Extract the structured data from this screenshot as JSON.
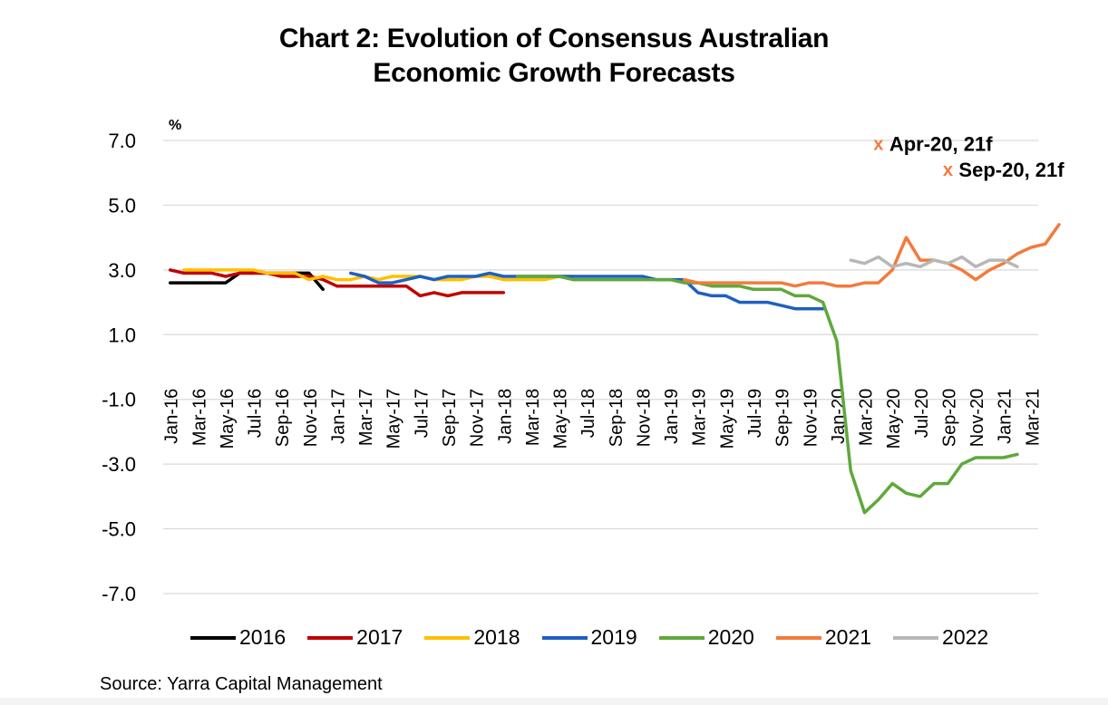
{
  "chart_data": {
    "type": "line",
    "title_line1": "Chart 2: Evolution of Consensus Australian",
    "title_line2": "Economic Growth Forecasts",
    "ylabel": "%",
    "ylim": [
      -7.0,
      7.0
    ],
    "yticks": [
      7.0,
      5.0,
      3.0,
      1.0,
      -1.0,
      -3.0,
      -5.0,
      -7.0
    ],
    "ytick_labels": [
      "7.0",
      "5.0",
      "3.0",
      "1.0",
      "-1.0",
      "-3.0",
      "-5.0",
      "-7.0"
    ],
    "x_months": [
      "Jan-16",
      "Feb-16",
      "Mar-16",
      "Apr-16",
      "May-16",
      "Jun-16",
      "Jul-16",
      "Aug-16",
      "Sep-16",
      "Oct-16",
      "Nov-16",
      "Dec-16",
      "Jan-17",
      "Feb-17",
      "Mar-17",
      "Apr-17",
      "May-17",
      "Jun-17",
      "Jul-17",
      "Aug-17",
      "Sep-17",
      "Oct-17",
      "Nov-17",
      "Dec-17",
      "Jan-18",
      "Feb-18",
      "Mar-18",
      "Apr-18",
      "May-18",
      "Jun-18",
      "Jul-18",
      "Aug-18",
      "Sep-18",
      "Oct-18",
      "Nov-18",
      "Dec-18",
      "Jan-19",
      "Feb-19",
      "Mar-19",
      "Apr-19",
      "May-19",
      "Jun-19",
      "Jul-19",
      "Aug-19",
      "Sep-19",
      "Oct-19",
      "Nov-19",
      "Dec-19",
      "Jan-20",
      "Feb-20",
      "Mar-20",
      "Apr-20",
      "May-20",
      "Jun-20",
      "Jul-20",
      "Aug-20",
      "Sep-20",
      "Oct-20",
      "Nov-20",
      "Dec-20",
      "Jan-21",
      "Feb-21",
      "Mar-21"
    ],
    "xtick_labels": [
      "Jan-16",
      "Mar-16",
      "May-16",
      "Jul-16",
      "Sep-16",
      "Nov-16",
      "Jan-17",
      "Mar-17",
      "May-17",
      "Jul-17",
      "Sep-17",
      "Nov-17",
      "Jan-18",
      "Mar-18",
      "May-18",
      "Jul-18",
      "Sep-18",
      "Nov-18",
      "Jan-19",
      "Mar-19",
      "May-19",
      "Jul-19",
      "Sep-19",
      "Nov-19",
      "Jan-20",
      "Mar-20",
      "May-20",
      "Jul-20",
      "Sep-20",
      "Nov-20",
      "Jan-21",
      "Mar-21"
    ],
    "series": [
      {
        "name": "2016",
        "color": "#000000",
        "start": 0,
        "values": [
          2.6,
          2.6,
          2.6,
          2.6,
          2.6,
          2.9,
          2.9,
          2.9,
          2.9,
          2.9,
          2.9,
          2.4
        ]
      },
      {
        "name": "2017",
        "color": "#c00000",
        "start": 0,
        "values": [
          3.0,
          2.9,
          2.9,
          2.9,
          2.8,
          2.9,
          2.9,
          2.9,
          2.8,
          2.8,
          2.8,
          2.7,
          2.5,
          2.5,
          2.5,
          2.5,
          2.5,
          2.5,
          2.2,
          2.3,
          2.2,
          2.3,
          2.3,
          2.3,
          2.3
        ]
      },
      {
        "name": "2018",
        "color": "#ffc000",
        "start": 1,
        "values": [
          3.0,
          3.0,
          3.0,
          3.0,
          3.0,
          3.0,
          2.9,
          2.9,
          2.9,
          2.7,
          2.8,
          2.7,
          2.7,
          2.8,
          2.7,
          2.8,
          2.8,
          2.8,
          2.7,
          2.7,
          2.7,
          2.8,
          2.8,
          2.7,
          2.7,
          2.7,
          2.7,
          2.8,
          2.8
        ]
      },
      {
        "name": "2019",
        "color": "#1f5fc2",
        "start": 13,
        "values": [
          2.9,
          2.8,
          2.6,
          2.6,
          2.7,
          2.8,
          2.7,
          2.8,
          2.8,
          2.8,
          2.9,
          2.8,
          2.8,
          2.8,
          2.8,
          2.8,
          2.8,
          2.8,
          2.8,
          2.8,
          2.8,
          2.8,
          2.7,
          2.7,
          2.7,
          2.3,
          2.2,
          2.2,
          2.0,
          2.0,
          2.0,
          1.9,
          1.8,
          1.8,
          1.8
        ]
      },
      {
        "name": "2020",
        "color": "#5fa83c",
        "start": 25,
        "values": [
          2.8,
          2.8,
          2.8,
          2.8,
          2.7,
          2.7,
          2.7,
          2.7,
          2.7,
          2.7,
          2.7,
          2.7,
          2.6,
          2.6,
          2.5,
          2.5,
          2.5,
          2.4,
          2.4,
          2.4,
          2.2,
          2.2,
          2.0,
          0.8,
          -3.2,
          -4.5,
          -4.1,
          -3.6,
          -3.9,
          -4.0,
          -3.6,
          -3.6,
          -3.0,
          -2.8,
          -2.8,
          -2.8,
          -2.7
        ]
      },
      {
        "name": "2021",
        "color": "#f47a3c",
        "start": 37,
        "values": [
          2.7,
          2.6,
          2.6,
          2.6,
          2.6,
          2.6,
          2.6,
          2.6,
          2.5,
          2.6,
          2.6,
          2.5,
          2.5,
          2.6,
          2.6,
          3.0,
          4.0,
          3.3,
          3.3,
          3.2,
          3.0,
          2.7,
          3.0,
          3.2,
          3.5,
          3.7,
          3.8,
          4.4
        ]
      },
      {
        "name": "2022",
        "color": "#b7b7b7",
        "start": 49,
        "values": [
          3.3,
          3.2,
          3.4,
          3.1,
          3.2,
          3.1,
          3.3,
          3.2,
          3.4,
          3.1,
          3.3,
          3.3,
          3.1
        ]
      }
    ],
    "annotations": [
      {
        "marker": "x",
        "text": "Apr-20, 21f",
        "x_month": "Apr-20",
        "y": 6.9,
        "color": "#f47a3c"
      },
      {
        "marker": "x",
        "text": "Sep-20, 21f",
        "x_month": "Sep-20",
        "y": 6.1,
        "color": "#f47a3c"
      }
    ],
    "legend_position": "bottom",
    "grid": true
  },
  "source_text": "Source: Yarra Capital Management"
}
